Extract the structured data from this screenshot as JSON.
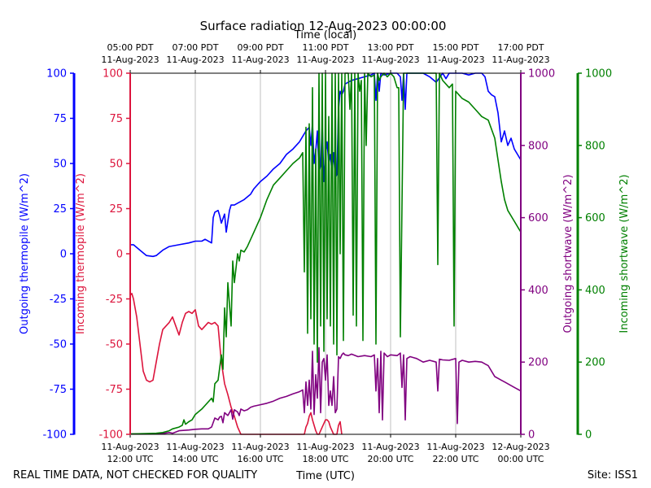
{
  "chart_data": {
    "type": "line",
    "title": "Surface radiation 12-Aug-2023 00:00:00",
    "top_axis_label": "Time (local)",
    "xlabel": "Time (UTC)",
    "footer_left": "REAL TIME DATA, NOT CHECKED FOR QUALITY",
    "footer_right": "Site: ISS1",
    "x_range_hours_utc": [
      12,
      24
    ],
    "x_ticks": [
      {
        "hour": 12,
        "bottom": [
          "11-Aug-2023",
          "12:00 UTC"
        ],
        "top": [
          "05:00 PDT",
          "11-Aug-2023"
        ]
      },
      {
        "hour": 14,
        "bottom": [
          "11-Aug-2023",
          "14:00 UTC"
        ],
        "top": [
          "07:00 PDT",
          "11-Aug-2023"
        ]
      },
      {
        "hour": 16,
        "bottom": [
          "11-Aug-2023",
          "16:00 UTC"
        ],
        "top": [
          "09:00 PDT",
          "11-Aug-2023"
        ]
      },
      {
        "hour": 18,
        "bottom": [
          "11-Aug-2023",
          "18:00 UTC"
        ],
        "top": [
          "11:00 PDT",
          "11-Aug-2023"
        ]
      },
      {
        "hour": 20,
        "bottom": [
          "11-Aug-2023",
          "20:00 UTC"
        ],
        "top": [
          "13:00 PDT",
          "11-Aug-2023"
        ]
      },
      {
        "hour": 22,
        "bottom": [
          "11-Aug-2023",
          "22:00 UTC"
        ],
        "top": [
          "15:00 PDT",
          "11-Aug-2023"
        ]
      },
      {
        "hour": 24,
        "bottom": [
          "12-Aug-2023",
          "00:00 UTC"
        ],
        "top": [
          "17:00 PDT",
          "11-Aug-2023"
        ]
      }
    ],
    "axes": {
      "outgoing_thermopile": {
        "label": "Outgoing thermopile (W/m^2)",
        "color": "#0000ff",
        "ylim": [
          -100,
          100
        ],
        "ticks": [
          -100,
          -75,
          -50,
          -25,
          0,
          25,
          50,
          75,
          100
        ]
      },
      "incoming_thermopile": {
        "label": "Incoming thermopile (W/m^2)",
        "color": "#dc143c",
        "ylim": [
          -100,
          100
        ],
        "ticks": [
          -100,
          -75,
          -50,
          -25,
          0,
          25,
          50,
          75,
          100
        ]
      },
      "outgoing_shortwave": {
        "label": "Outgoing shortwave (W/m^2)",
        "color": "#800080",
        "ylim": [
          0,
          1000
        ],
        "ticks": [
          0,
          200,
          400,
          600,
          800,
          1000
        ]
      },
      "incoming_shortwave": {
        "label": "Incoming shortwave (W/m^2)",
        "color": "#008000",
        "ylim": [
          0,
          1000
        ],
        "ticks": [
          0,
          200,
          400,
          600,
          800,
          1000
        ]
      }
    },
    "series": [
      {
        "name": "Outgoing thermopile",
        "axis": "outgoing_thermopile",
        "color": "#0000ff",
        "x": [
          12.0,
          12.1,
          12.3,
          12.5,
          12.7,
          12.8,
          13.0,
          13.2,
          13.5,
          13.8,
          14.0,
          14.2,
          14.3,
          14.5,
          14.55,
          14.6,
          14.7,
          14.75,
          14.8,
          14.9,
          14.95,
          15.05,
          15.1,
          15.2,
          15.3,
          15.5,
          15.7,
          15.8,
          16.0,
          16.2,
          16.4,
          16.6,
          16.8,
          17.0,
          17.2,
          17.3,
          17.4,
          17.5,
          17.55,
          17.6,
          17.65,
          17.7,
          17.75,
          17.8,
          17.85,
          17.9,
          17.95,
          18.0,
          18.05,
          18.1,
          18.15,
          18.2,
          18.25,
          18.3,
          18.35,
          18.4,
          18.45,
          18.5,
          18.55,
          18.6,
          18.7,
          18.8,
          19.0,
          19.2,
          19.4,
          19.5,
          19.55,
          19.6,
          19.65,
          19.7,
          19.8,
          20.0,
          20.2,
          20.3,
          20.35,
          20.4,
          20.45,
          20.5,
          20.6,
          20.8,
          21.0,
          21.2,
          21.4,
          21.6,
          21.7,
          21.8,
          22.0,
          22.2,
          22.4,
          22.6,
          22.8,
          22.9,
          23.0,
          23.1,
          23.2,
          23.3,
          23.4,
          23.5,
          23.6,
          23.7,
          23.8,
          23.9,
          24.0
        ],
        "values": [
          5,
          5,
          2,
          -1,
          -1.5,
          -1,
          2,
          4,
          5,
          6,
          7,
          7,
          8,
          6,
          20,
          23,
          24,
          21,
          17,
          22,
          12,
          24,
          27,
          27,
          28,
          30,
          33,
          36,
          40,
          43,
          47,
          50,
          55,
          58,
          62,
          65,
          68,
          70,
          60,
          72,
          50,
          57,
          68,
          45,
          49,
          72,
          40,
          55,
          62,
          50,
          55,
          45,
          56,
          42,
          44,
          80,
          90,
          88,
          90,
          94,
          95,
          96,
          97,
          98,
          99,
          100,
          85,
          100,
          90,
          100,
          99,
          100,
          100,
          98,
          85,
          100,
          80,
          100,
          100,
          100,
          100,
          98,
          95,
          100,
          97,
          100,
          100,
          100,
          99,
          100,
          100,
          98,
          90,
          88,
          87,
          78,
          62,
          68,
          60,
          64,
          58,
          55,
          52
        ]
      },
      {
        "name": "Incoming thermopile",
        "axis": "incoming_thermopile",
        "color": "#dc143c",
        "x": [
          12.0,
          12.05,
          12.1,
          12.2,
          12.3,
          12.4,
          12.5,
          12.6,
          12.7,
          12.8,
          12.9,
          13.0,
          13.1,
          13.2,
          13.3,
          13.4,
          13.5,
          13.6,
          13.7,
          13.8,
          13.9,
          14.0,
          14.1,
          14.2,
          14.3,
          14.4,
          14.5,
          14.6,
          14.7,
          14.8,
          14.9,
          15.0,
          15.1,
          15.2,
          15.3,
          15.4,
          17.35,
          17.4,
          17.45,
          17.5,
          17.55,
          17.6,
          17.65,
          17.7,
          17.75,
          17.8,
          17.85,
          17.9,
          17.95,
          18.0,
          18.05,
          18.1,
          18.15,
          18.2,
          18.25,
          18.3,
          18.35,
          18.4,
          18.45,
          18.5
        ],
        "values": [
          -23,
          -22,
          -25,
          -35,
          -50,
          -65,
          -70,
          -71,
          -70,
          -60,
          -50,
          -42,
          -40,
          -38,
          -35,
          -40,
          -45,
          -38,
          -33,
          -32,
          -33,
          -31,
          -40,
          -42,
          -40,
          -38,
          -39,
          -38,
          -40,
          -60,
          -72,
          -78,
          -85,
          -90,
          -96,
          -100,
          -100,
          -96,
          -94,
          -90,
          -88,
          -92,
          -95,
          -98,
          -100,
          -100,
          -98,
          -96,
          -94,
          -92,
          -92,
          -93,
          -96,
          -98,
          -100,
          -100,
          -100,
          -95,
          -93,
          -100
        ]
      },
      {
        "name": "Outgoing shortwave",
        "axis": "outgoing_shortwave",
        "color": "#800080",
        "x": [
          12.0,
          12.5,
          13.0,
          13.2,
          13.3,
          13.5,
          13.8,
          14.0,
          14.2,
          14.4,
          14.5,
          14.6,
          14.7,
          14.75,
          14.8,
          14.85,
          14.9,
          15.0,
          15.1,
          15.15,
          15.2,
          15.3,
          15.35,
          15.4,
          15.5,
          15.6,
          15.7,
          15.8,
          16.0,
          16.2,
          16.4,
          16.6,
          16.8,
          17.0,
          17.2,
          17.3,
          17.35,
          17.4,
          17.45,
          17.5,
          17.55,
          17.6,
          17.65,
          17.7,
          17.75,
          17.8,
          17.85,
          17.9,
          17.95,
          18.0,
          18.05,
          18.1,
          18.15,
          18.2,
          18.25,
          18.3,
          18.35,
          18.4,
          18.45,
          18.5,
          18.55,
          18.6,
          18.7,
          18.8,
          19.0,
          19.2,
          19.4,
          19.5,
          19.55,
          19.6,
          19.65,
          19.7,
          19.75,
          19.8,
          19.9,
          20.0,
          20.2,
          20.3,
          20.35,
          20.4,
          20.45,
          20.5,
          20.6,
          20.8,
          21.0,
          21.2,
          21.4,
          21.45,
          21.5,
          21.6,
          21.8,
          22.0,
          22.05,
          22.1,
          22.2,
          22.4,
          22.6,
          22.8,
          22.9,
          23.0,
          23.1,
          23.2,
          23.3,
          23.4,
          23.5,
          23.6,
          23.8,
          24.0
        ],
        "values": [
          1,
          1,
          2,
          5,
          3,
          10,
          12,
          14,
          15,
          15,
          20,
          45,
          40,
          48,
          50,
          32,
          60,
          52,
          68,
          42,
          68,
          62,
          52,
          70,
          65,
          68,
          75,
          78,
          82,
          86,
          92,
          100,
          105,
          112,
          118,
          123,
          60,
          145,
          80,
          150,
          70,
          230,
          55,
          165,
          100,
          240,
          60,
          200,
          210,
          150,
          220,
          80,
          120,
          80,
          160,
          60,
          70,
          215,
          210,
          220,
          225,
          220,
          218,
          222,
          215,
          218,
          215,
          220,
          120,
          210,
          60,
          230,
          40,
          225,
          215,
          220,
          218,
          225,
          130,
          220,
          40,
          210,
          215,
          210,
          200,
          205,
          200,
          120,
          208,
          206,
          205,
          210,
          30,
          200,
          205,
          200,
          202,
          200,
          195,
          190,
          175,
          160,
          155,
          150,
          145,
          140,
          130,
          120
        ]
      },
      {
        "name": "Incoming shortwave",
        "axis": "incoming_shortwave",
        "color": "#008000",
        "x": [
          12.0,
          12.5,
          12.8,
          13.0,
          13.2,
          13.3,
          13.5,
          13.6,
          13.65,
          13.7,
          13.8,
          13.9,
          14.0,
          14.2,
          14.3,
          14.5,
          14.55,
          14.6,
          14.7,
          14.8,
          14.85,
          14.9,
          14.95,
          15.0,
          15.1,
          15.15,
          15.2,
          15.3,
          15.35,
          15.4,
          15.5,
          15.6,
          15.8,
          16.0,
          16.2,
          16.4,
          16.6,
          16.8,
          17.0,
          17.2,
          17.3,
          17.35,
          17.4,
          17.45,
          17.5,
          17.55,
          17.6,
          17.65,
          17.7,
          17.75,
          17.8,
          17.85,
          17.9,
          17.95,
          18.0,
          18.05,
          18.1,
          18.15,
          18.2,
          18.25,
          18.3,
          18.35,
          18.4,
          18.45,
          18.5,
          18.55,
          18.6,
          18.7,
          18.75,
          18.8,
          18.85,
          18.9,
          18.95,
          19.0,
          19.05,
          19.1,
          19.15,
          19.2,
          19.25,
          19.3,
          19.4,
          19.5,
          19.55,
          19.6,
          19.65,
          19.7,
          19.8,
          19.9,
          20.0,
          20.1,
          20.2,
          20.25,
          20.3,
          20.4,
          20.5,
          20.6,
          20.8,
          21.0,
          21.2,
          21.4,
          21.45,
          21.5,
          21.6,
          21.8,
          21.9,
          21.95,
          22.0,
          22.2,
          22.4,
          22.6,
          22.8,
          23.0,
          23.2,
          23.3,
          23.4,
          23.5,
          23.6,
          23.8,
          24.0
        ],
        "values": [
          1,
          2,
          3,
          5,
          10,
          15,
          20,
          25,
          40,
          28,
          35,
          40,
          55,
          70,
          80,
          100,
          90,
          140,
          150,
          220,
          180,
          350,
          270,
          420,
          300,
          480,
          420,
          500,
          480,
          510,
          505,
          520,
          560,
          600,
          650,
          690,
          710,
          730,
          750,
          765,
          780,
          450,
          850,
          280,
          860,
          320,
          960,
          250,
          790,
          200,
          1000,
          300,
          1000,
          230,
          1000,
          320,
          880,
          300,
          1000,
          250,
          1000,
          220,
          1000,
          500,
          1000,
          260,
          1000,
          1000,
          900,
          1000,
          330,
          1000,
          300,
          1000,
          950,
          980,
          260,
          1000,
          800,
          1000,
          990,
          995,
          250,
          1000,
          980,
          990,
          1000,
          990,
          1000,
          990,
          960,
          960,
          270,
          1000,
          1000,
          1000,
          1000,
          1000,
          1000,
          1000,
          470,
          1000,
          980,
          960,
          970,
          300,
          950,
          930,
          920,
          900,
          880,
          870,
          820,
          760,
          700,
          650,
          620,
          590,
          560
        ]
      }
    ]
  }
}
